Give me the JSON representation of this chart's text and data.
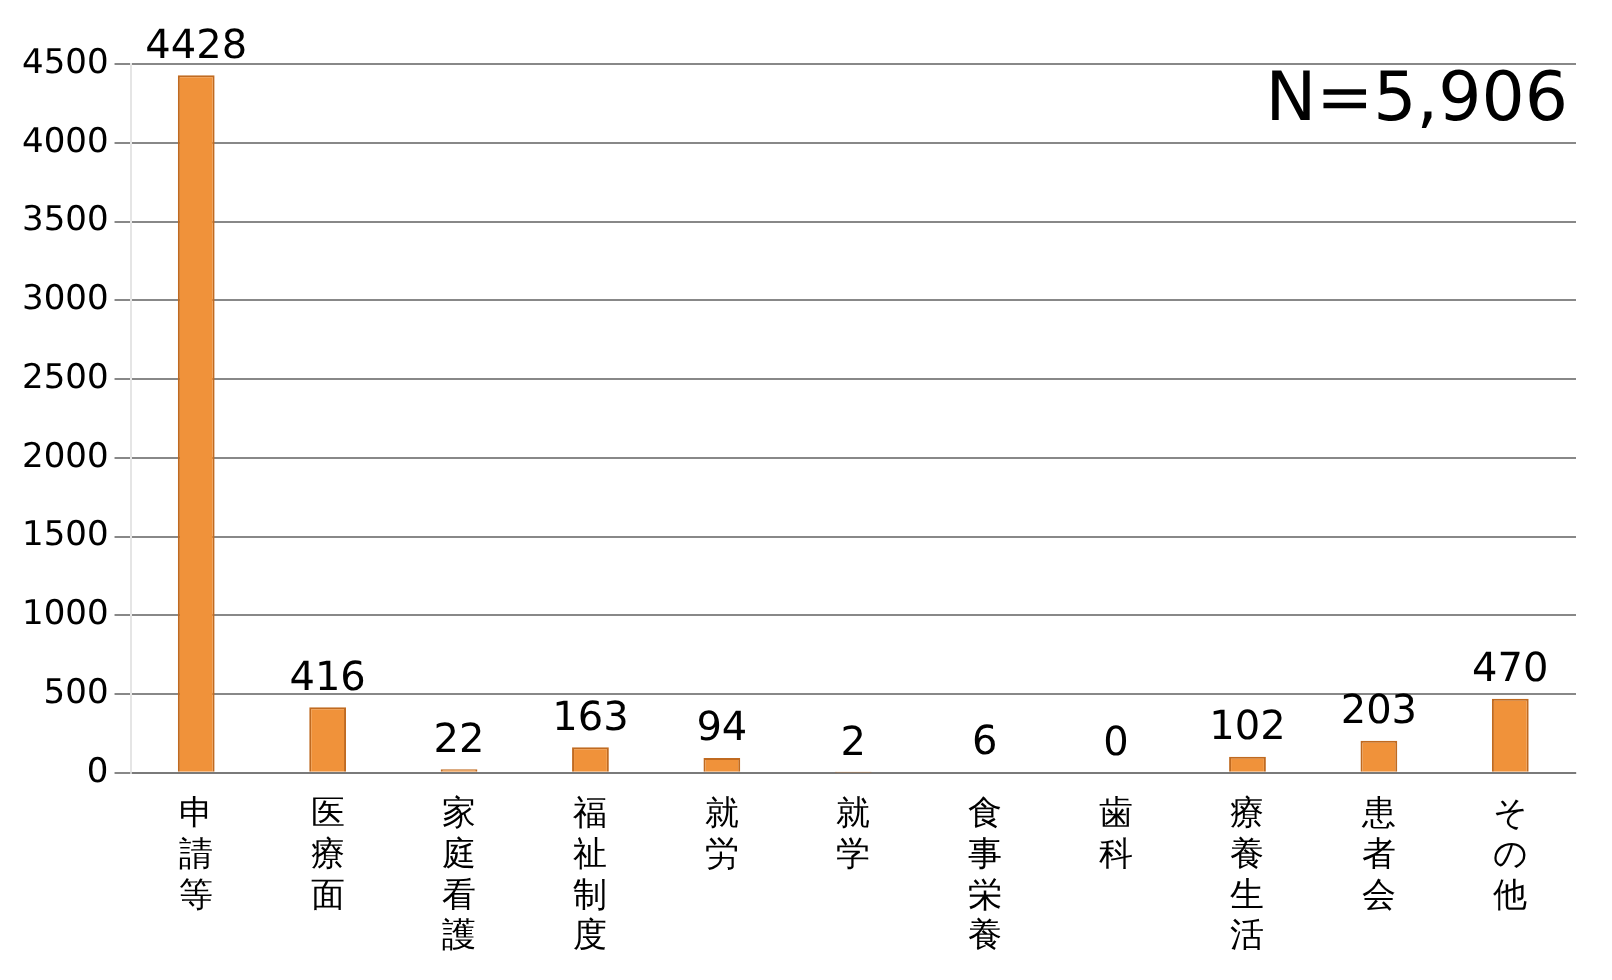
{
  "chart_data": {
    "type": "bar",
    "categories": [
      "申請等",
      "医療面",
      "家庭看護",
      "福祉制度",
      "就労",
      "就学",
      "食事栄養",
      "歯科",
      "療養生活",
      "患者会",
      "その他"
    ],
    "values": [
      4428,
      416,
      22,
      163,
      94,
      2,
      6,
      0,
      102,
      203,
      470
    ],
    "color": "#f0923a",
    "ylim": [
      0,
      4500
    ],
    "yticks": [
      0,
      500,
      1000,
      1500,
      2000,
      2500,
      3000,
      3500,
      4000,
      4500
    ],
    "grid": "y",
    "data_labels": true,
    "annotations": [
      "N=5,906"
    ]
  }
}
